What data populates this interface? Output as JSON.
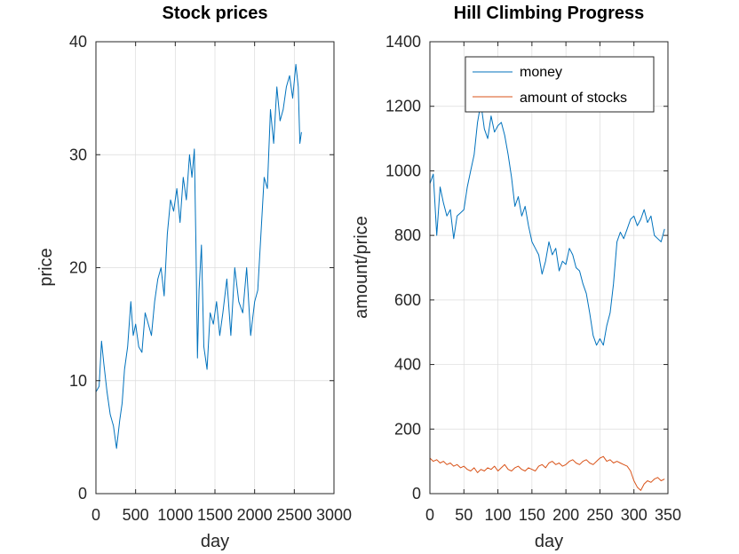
{
  "chart_data": [
    {
      "type": "line",
      "title": "Stock prices",
      "xlabel": "day",
      "ylabel": "price",
      "xlim": [
        0,
        3000
      ],
      "ylim": [
        0,
        40
      ],
      "xticks": [
        0,
        500,
        1000,
        1500,
        2000,
        2500,
        3000
      ],
      "xtick_labels": [
        "0",
        "500",
        "1000",
        "1500",
        "2000",
        "2500",
        "3000"
      ],
      "yticks": [
        0,
        10,
        20,
        30,
        40
      ],
      "ytick_labels": [
        "0",
        "10",
        "20",
        "30",
        "40"
      ],
      "grid": true,
      "series": [
        {
          "color": "#0072bd",
          "x": [
            0,
            40,
            70,
            100,
            140,
            180,
            220,
            260,
            300,
            330,
            360,
            400,
            440,
            470,
            500,
            540,
            580,
            620,
            660,
            700,
            740,
            780,
            820,
            860,
            900,
            940,
            980,
            1020,
            1060,
            1100,
            1140,
            1180,
            1210,
            1240,
            1260,
            1280,
            1300,
            1330,
            1360,
            1400,
            1440,
            1480,
            1520,
            1560,
            1600,
            1650,
            1700,
            1750,
            1800,
            1850,
            1900,
            1950,
            2000,
            2040,
            2080,
            2120,
            2160,
            2200,
            2240,
            2280,
            2320,
            2360,
            2400,
            2440,
            2480,
            2520,
            2550,
            2570,
            2590
          ],
          "y": [
            9,
            9.5,
            13.5,
            11.5,
            9,
            7,
            6,
            4,
            6.5,
            8,
            11,
            13,
            17,
            14,
            15,
            13,
            12.5,
            16,
            15,
            14,
            17,
            19,
            20,
            17.5,
            23,
            26,
            25,
            27,
            24,
            28,
            26,
            30,
            28,
            30.5,
            22,
            12,
            18,
            22,
            13,
            11,
            16,
            15,
            17,
            14,
            16,
            19,
            14,
            20,
            17,
            16,
            20,
            14,
            17,
            18,
            23,
            28,
            27,
            34,
            31,
            36,
            33,
            34,
            36,
            37,
            35,
            38,
            36,
            31,
            32
          ]
        }
      ]
    },
    {
      "type": "line",
      "title": "Hill Climbing Progress",
      "xlabel": "day",
      "ylabel": "amount/price",
      "xlim": [
        0,
        350
      ],
      "ylim": [
        0,
        1400
      ],
      "xticks": [
        0,
        50,
        100,
        150,
        200,
        250,
        300,
        350
      ],
      "xtick_labels": [
        "0",
        "50",
        "100",
        "150",
        "200",
        "250",
        "300",
        "350"
      ],
      "yticks": [
        0,
        200,
        400,
        600,
        800,
        1000,
        1200,
        1400
      ],
      "ytick_labels": [
        "0",
        "200",
        "400",
        "600",
        "800",
        "1000",
        "1200",
        "1400"
      ],
      "grid": true,
      "legend_position": "top-right",
      "series": [
        {
          "name": "money",
          "color": "#0072bd",
          "x": [
            0,
            5,
            10,
            15,
            20,
            25,
            30,
            35,
            40,
            45,
            50,
            55,
            60,
            65,
            70,
            75,
            80,
            85,
            90,
            95,
            100,
            105,
            110,
            115,
            120,
            125,
            130,
            135,
            140,
            145,
            150,
            155,
            160,
            165,
            170,
            175,
            180,
            185,
            190,
            195,
            200,
            205,
            210,
            215,
            220,
            225,
            230,
            235,
            240,
            245,
            250,
            255,
            260,
            265,
            270,
            275,
            280,
            285,
            290,
            295,
            300,
            305,
            310,
            315,
            320,
            325,
            330,
            335,
            340,
            345
          ],
          "y": [
            960,
            990,
            800,
            950,
            900,
            860,
            880,
            790,
            860,
            870,
            880,
            950,
            1000,
            1050,
            1150,
            1210,
            1130,
            1100,
            1170,
            1120,
            1140,
            1150,
            1110,
            1050,
            980,
            890,
            920,
            860,
            890,
            830,
            780,
            760,
            740,
            680,
            720,
            780,
            740,
            760,
            690,
            720,
            710,
            760,
            740,
            700,
            690,
            650,
            620,
            560,
            490,
            460,
            480,
            460,
            520,
            560,
            650,
            780,
            810,
            790,
            820,
            850,
            860,
            830,
            850,
            880,
            840,
            860,
            800,
            790,
            780,
            820
          ]
        },
        {
          "name": "amount of stocks",
          "color": "#d95319",
          "x": [
            0,
            5,
            10,
            15,
            20,
            25,
            30,
            35,
            40,
            45,
            50,
            55,
            60,
            65,
            70,
            75,
            80,
            85,
            90,
            95,
            100,
            105,
            110,
            115,
            120,
            125,
            130,
            135,
            140,
            145,
            150,
            155,
            160,
            165,
            170,
            175,
            180,
            185,
            190,
            195,
            200,
            205,
            210,
            215,
            220,
            225,
            230,
            235,
            240,
            245,
            250,
            255,
            260,
            265,
            270,
            275,
            280,
            285,
            290,
            295,
            300,
            305,
            310,
            315,
            320,
            325,
            330,
            335,
            340,
            345
          ],
          "y": [
            110,
            100,
            105,
            95,
            100,
            90,
            95,
            85,
            90,
            80,
            85,
            75,
            70,
            80,
            65,
            75,
            70,
            80,
            75,
            85,
            70,
            80,
            90,
            75,
            70,
            80,
            85,
            75,
            70,
            80,
            75,
            70,
            85,
            90,
            80,
            95,
            100,
            90,
            95,
            85,
            90,
            100,
            105,
            95,
            90,
            100,
            105,
            95,
            90,
            100,
            110,
            115,
            100,
            105,
            95,
            100,
            95,
            90,
            85,
            70,
            40,
            20,
            10,
            30,
            40,
            35,
            45,
            50,
            40,
            45
          ]
        }
      ]
    }
  ]
}
